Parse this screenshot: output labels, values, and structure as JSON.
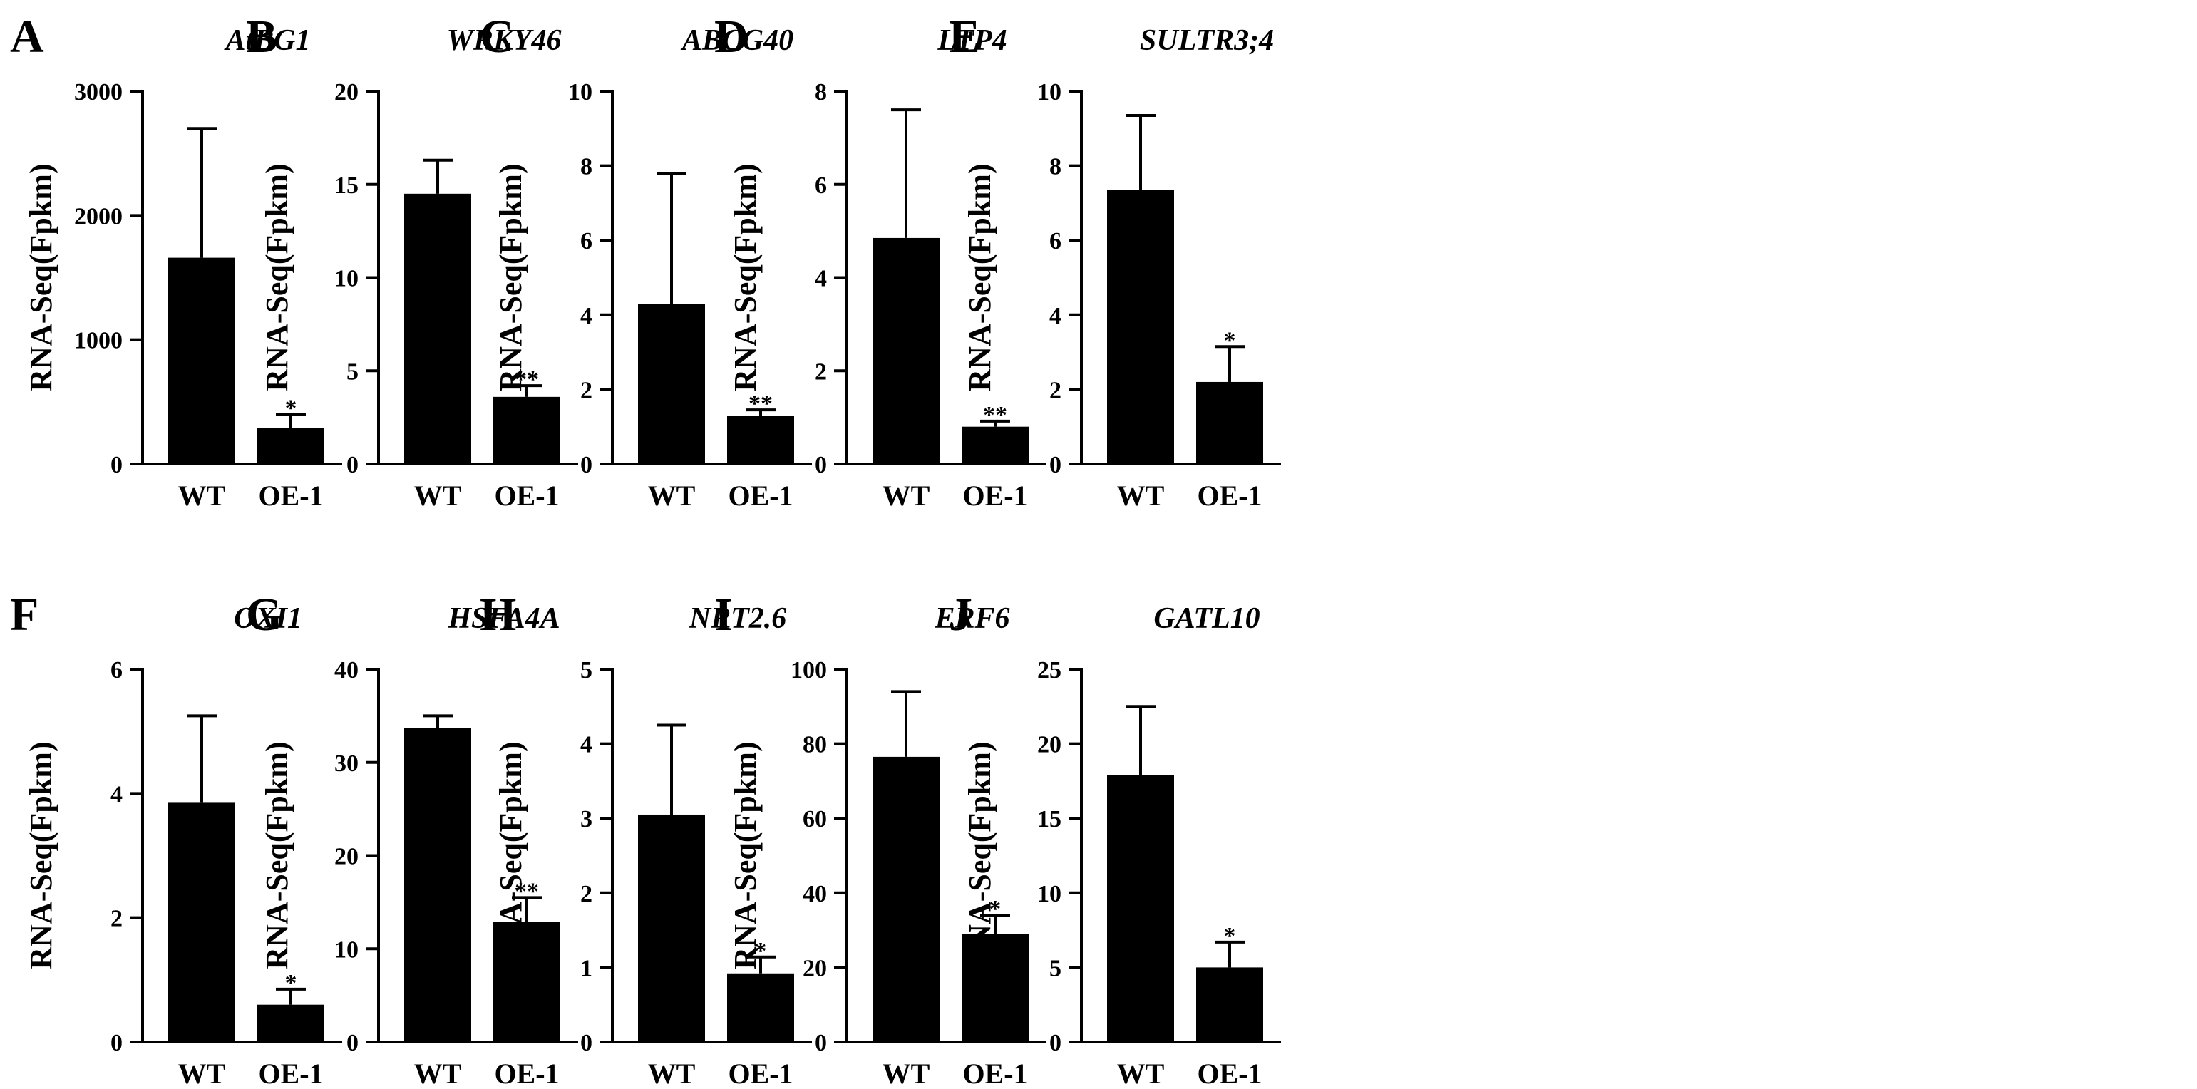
{
  "figure": {
    "y_axis_label": "RNA-Seq(Fpkm)",
    "categories": [
      "WT",
      "OE-1"
    ],
    "bar_color": "#000000"
  },
  "chart_data": [
    {
      "type": "bar",
      "panel": "A",
      "title": "AtBG1",
      "ylabel": "RNA-Seq(Fpkm)",
      "categories": [
        "WT",
        "OE-1"
      ],
      "values": [
        1660,
        290
      ],
      "errors": [
        1040,
        110
      ],
      "significance": [
        "",
        "*"
      ],
      "ylim": [
        0,
        3000
      ],
      "ticks": [
        0,
        1000,
        2000,
        3000
      ]
    },
    {
      "type": "bar",
      "panel": "B",
      "title": "WRKY46",
      "ylabel": "RNA-Seq(Fpkm)",
      "categories": [
        "WT",
        "OE-1"
      ],
      "values": [
        14.5,
        3.6
      ],
      "errors": [
        1.8,
        0.6
      ],
      "significance": [
        "",
        "**"
      ],
      "ylim": [
        0,
        20
      ],
      "ticks": [
        0,
        5,
        10,
        15,
        20
      ]
    },
    {
      "type": "bar",
      "panel": "C",
      "title": "ABCG40",
      "ylabel": "RNA-Seq(Fpkm)",
      "categories": [
        "WT",
        "OE-1"
      ],
      "values": [
        4.3,
        1.3
      ],
      "errors": [
        3.5,
        0.15
      ],
      "significance": [
        "",
        "**"
      ],
      "ylim": [
        0,
        10
      ],
      "ticks": [
        0,
        2,
        4,
        6,
        8,
        10
      ]
    },
    {
      "type": "bar",
      "panel": "D",
      "title": "LTP4",
      "ylabel": "RNA-Seq(Fpkm)",
      "categories": [
        "WT",
        "OE-1"
      ],
      "values": [
        4.85,
        0.8
      ],
      "errors": [
        2.75,
        0.12
      ],
      "significance": [
        "",
        "**"
      ],
      "ylim": [
        0,
        8
      ],
      "ticks": [
        0,
        2,
        4,
        6,
        8
      ]
    },
    {
      "type": "bar",
      "panel": "E",
      "title": "SULTR3;4",
      "ylabel": "RNA-Seq(Fpkm)",
      "categories": [
        "WT",
        "OE-1"
      ],
      "values": [
        7.35,
        2.2
      ],
      "errors": [
        2.0,
        0.95
      ],
      "significance": [
        "",
        "*"
      ],
      "ylim": [
        0,
        10
      ],
      "ticks": [
        0,
        2,
        4,
        6,
        8,
        10
      ]
    },
    {
      "type": "bar",
      "panel": "F",
      "title": "OXI1",
      "ylabel": "RNA-Seq(Fpkm)",
      "categories": [
        "WT",
        "OE-1"
      ],
      "values": [
        3.85,
        0.6
      ],
      "errors": [
        1.4,
        0.25
      ],
      "significance": [
        "",
        "*"
      ],
      "ylim": [
        0,
        6
      ],
      "ticks": [
        0,
        2,
        4,
        6
      ]
    },
    {
      "type": "bar",
      "panel": "G",
      "title": "HSFA4A",
      "ylabel": "RNA-Seq(Fpkm)",
      "categories": [
        "WT",
        "OE-1"
      ],
      "values": [
        33.7,
        12.9
      ],
      "errors": [
        1.3,
        2.6
      ],
      "significance": [
        "",
        "**"
      ],
      "ylim": [
        0,
        40
      ],
      "ticks": [
        0,
        10,
        20,
        30,
        40
      ]
    },
    {
      "type": "bar",
      "panel": "H",
      "title": "NRT2.6",
      "ylabel": "RNA-Seq(Fpkm)",
      "categories": [
        "WT",
        "OE-1"
      ],
      "values": [
        3.05,
        0.92
      ],
      "errors": [
        1.2,
        0.22
      ],
      "significance": [
        "",
        "*"
      ],
      "ylim": [
        0,
        5
      ],
      "ticks": [
        0,
        1,
        2,
        3,
        4,
        5
      ]
    },
    {
      "type": "bar",
      "panel": "I",
      "title": "ERF6",
      "ylabel": "RNA-Seq(Fpkm)",
      "categories": [
        "WT",
        "OE-1"
      ],
      "values": [
        76.5,
        29
      ],
      "errors": [
        17.5,
        5
      ],
      "significance": [
        "",
        "*"
      ],
      "ylim": [
        0,
        100
      ],
      "ticks": [
        0,
        20,
        40,
        60,
        80,
        100
      ]
    },
    {
      "type": "bar",
      "panel": "J",
      "title": "GATL10",
      "ylabel": "RNA-Seq(Fpkm)",
      "categories": [
        "WT",
        "OE-1"
      ],
      "values": [
        17.9,
        5.0
      ],
      "errors": [
        4.6,
        1.7
      ],
      "significance": [
        "",
        "*"
      ],
      "ylim": [
        0,
        25
      ],
      "ticks": [
        0,
        5,
        10,
        15,
        20,
        25
      ]
    }
  ]
}
